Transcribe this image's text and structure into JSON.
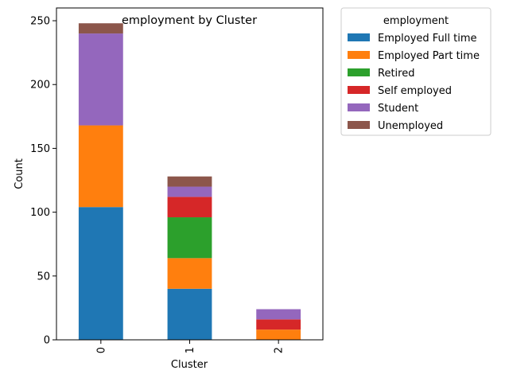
{
  "chart_data": {
    "type": "bar",
    "stacked": true,
    "title": "employment by Cluster",
    "xlabel": "Cluster",
    "ylabel": "Count",
    "categories": [
      "0",
      "1",
      "2"
    ],
    "ylim": [
      0,
      260
    ],
    "yticks": [
      0,
      50,
      100,
      150,
      200,
      250
    ],
    "grid": false,
    "legend": {
      "title": "employment",
      "placement": "outside-right-top"
    },
    "series": [
      {
        "name": "Employed Full time",
        "color": "#1f77b4",
        "values": [
          104,
          40,
          0
        ]
      },
      {
        "name": "Employed Part time",
        "color": "#ff7f0e",
        "values": [
          64,
          24,
          8
        ]
      },
      {
        "name": "Retired",
        "color": "#2ca02c",
        "values": [
          0,
          32,
          0
        ]
      },
      {
        "name": "Self employed",
        "color": "#d62728",
        "values": [
          0,
          16,
          8
        ]
      },
      {
        "name": "Student",
        "color": "#9467bd",
        "values": [
          72,
          8,
          8
        ]
      },
      {
        "name": "Unemployed",
        "color": "#8c564b",
        "values": [
          8,
          8,
          0
        ]
      }
    ]
  }
}
